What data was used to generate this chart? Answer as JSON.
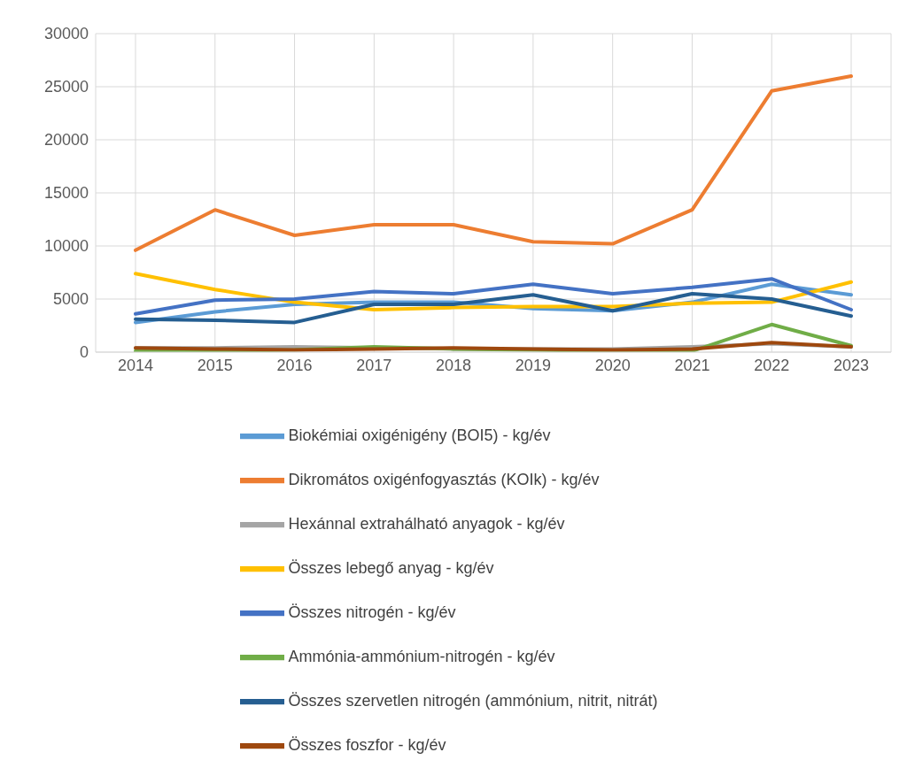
{
  "chart_data": {
    "type": "line",
    "categories": [
      "2014",
      "2015",
      "2016",
      "2017",
      "2018",
      "2019",
      "2020",
      "2021",
      "2022",
      "2023"
    ],
    "series": [
      {
        "name": "Biokémiai oxigénigény (BOI5) - kg/év",
        "color": "#5b9bd5",
        "values": [
          2800,
          3800,
          4500,
          4700,
          4700,
          4100,
          3900,
          4700,
          6400,
          5400
        ]
      },
      {
        "name": "Dikromátos oxigénfogyasztás (KOIk) - kg/év",
        "color": "#ed7d31",
        "values": [
          9600,
          13400,
          11000,
          12000,
          12000,
          10400,
          10200,
          13400,
          24600,
          26000
        ]
      },
      {
        "name": "Hexánnal extrahálható anyagok - kg/év",
        "color": "#a5a5a5",
        "values": [
          400,
          400,
          500,
          null,
          300,
          300,
          300,
          500,
          800,
          500
        ]
      },
      {
        "name": "Összes lebegő anyag - kg/év",
        "color": "#ffc000",
        "values": [
          7400,
          5900,
          4700,
          4000,
          4200,
          4300,
          4300,
          4600,
          4700,
          6600
        ]
      },
      {
        "name": "Összes nitrogén - kg/év",
        "color": "#4472c4",
        "values": [
          3600,
          4900,
          5000,
          5700,
          5500,
          6400,
          5500,
          6100,
          6900,
          4000
        ]
      },
      {
        "name": "Ammónia-ammónium-nitrogén - kg/év",
        "color": "#70ad47",
        "values": [
          100,
          100,
          200,
          500,
          300,
          200,
          100,
          100,
          2600,
          600
        ]
      },
      {
        "name": "Összes szervetlen nitrogén (ammónium, nitrit, nitrát)",
        "color": "#255e91",
        "values": [
          3100,
          3000,
          2800,
          4500,
          4500,
          5400,
          3900,
          5500,
          5000,
          3400
        ]
      },
      {
        "name": "Összes foszfor - kg/év",
        "color": "#9e480e",
        "values": [
          400,
          300,
          200,
          300,
          400,
          300,
          200,
          300,
          900,
          500
        ]
      }
    ],
    "ylim": [
      0,
      30000
    ],
    "yticks": [
      0,
      5000,
      10000,
      15000,
      20000,
      25000,
      30000
    ],
    "grid": true,
    "legend": "bottom",
    "marker": "none",
    "line_style": "solid"
  }
}
